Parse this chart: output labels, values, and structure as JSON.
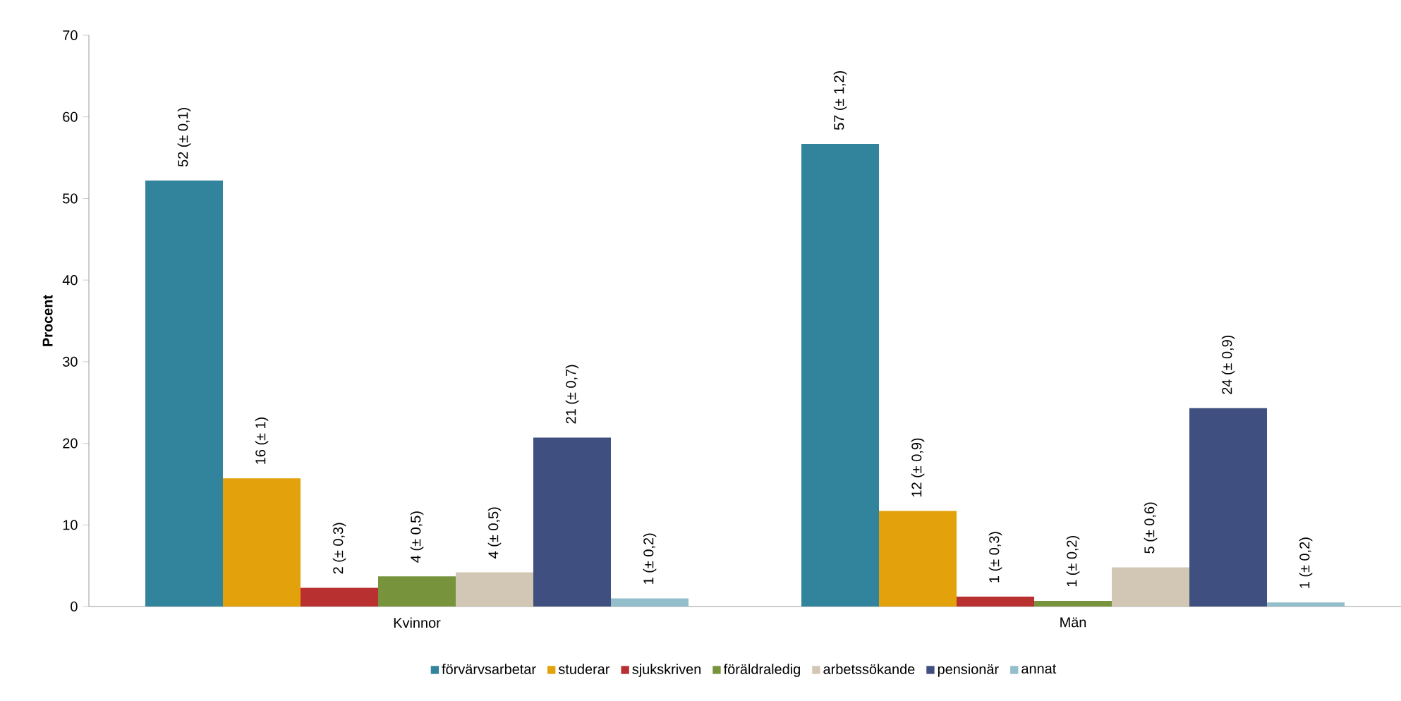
{
  "chart_data": {
    "type": "bar",
    "ylabel": "Procent",
    "categories": [
      "Kvinnor",
      "Män"
    ],
    "ylim": [
      0,
      70
    ],
    "yticks": [
      0,
      10,
      20,
      30,
      40,
      50,
      60,
      70
    ],
    "grid": false,
    "legend": "bottom",
    "series": [
      {
        "name": "förvärvsarbetar",
        "color": "#31849b",
        "values": [
          52.2,
          56.7
        ],
        "value_labels": [
          "52  (± 0,1)",
          "57  (± 1,2)"
        ]
      },
      {
        "name": "studerar",
        "color": "#e3a20b",
        "values": [
          15.7,
          11.7
        ],
        "value_labels": [
          "16  (± 1)",
          "12  (± 0,9)"
        ]
      },
      {
        "name": "sjukskriven",
        "color": "#b8302f",
        "values": [
          2.3,
          1.2
        ],
        "value_labels": [
          "2  (± 0,3)",
          "1  (± 0,3)"
        ]
      },
      {
        "name": "föräldraledig",
        "color": "#77933c",
        "values": [
          3.7,
          0.7
        ],
        "value_labels": [
          "4  (± 0,5)",
          "1  (± 0,2)"
        ]
      },
      {
        "name": "arbetssökande",
        "color": "#d2c7b5",
        "values": [
          4.2,
          4.8
        ],
        "value_labels": [
          "4  (± 0,5)",
          "5  (± 0,6)"
        ]
      },
      {
        "name": "pensionär",
        "color": "#3f4f7f",
        "values": [
          20.7,
          24.3
        ],
        "value_labels": [
          "21  (± 0,7)",
          "24  (± 0,9)"
        ]
      },
      {
        "name": "annat",
        "color": "#93bfcc",
        "values": [
          1.0,
          0.5
        ],
        "value_labels": [
          "1  (± 0,2)",
          "1  (± 0,2)"
        ]
      }
    ]
  }
}
